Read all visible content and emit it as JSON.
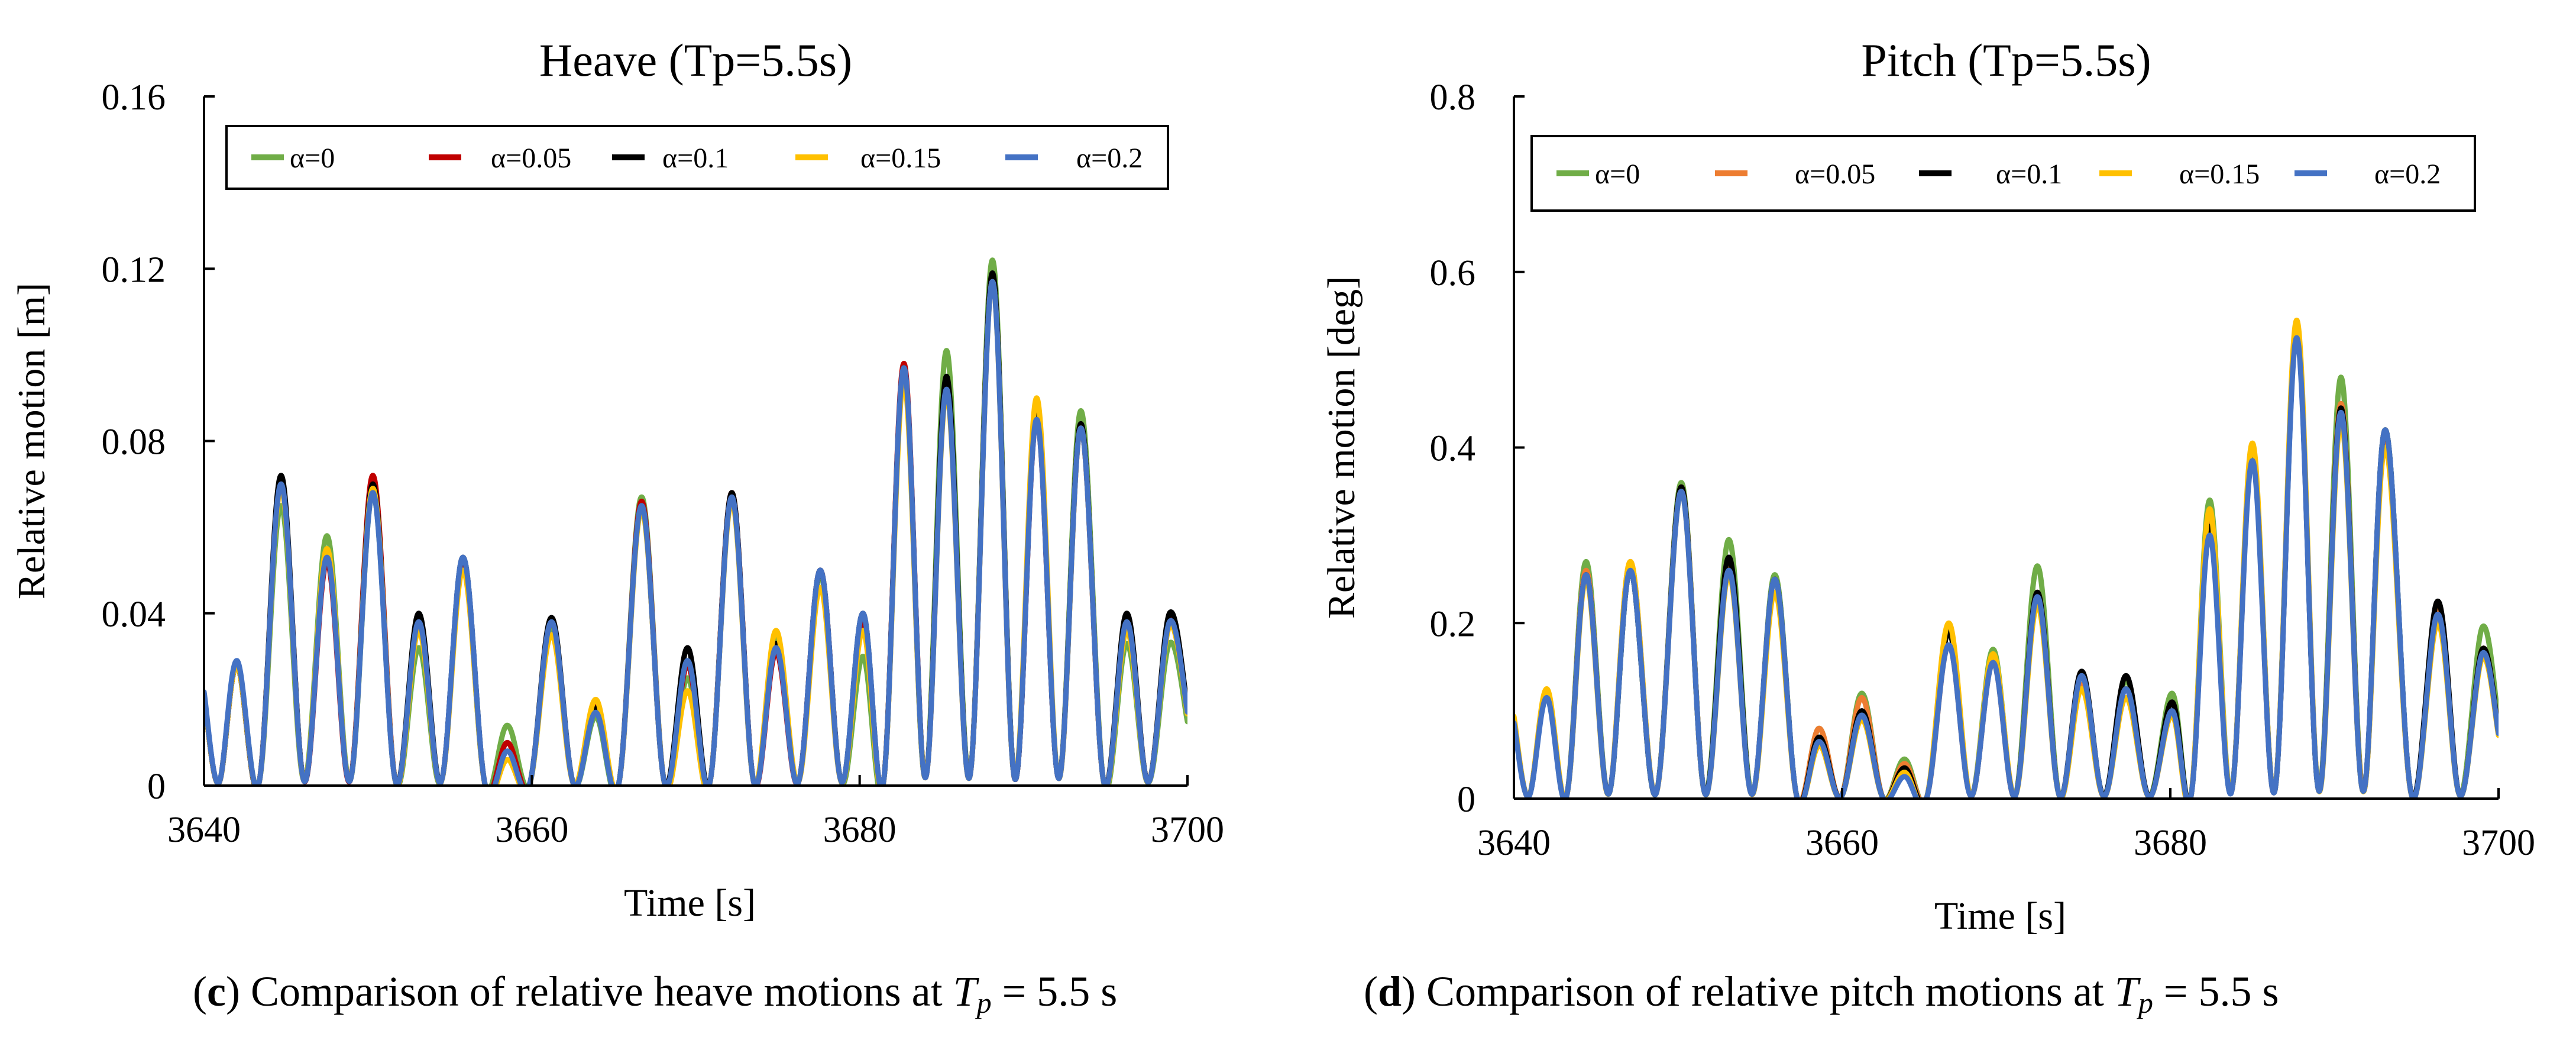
{
  "chart_data": [
    {
      "type": "line",
      "title": "Heave (Tp=5.5s)",
      "xlabel": "Time  [s]",
      "ylabel": "Relative motion [m]",
      "xlim": [
        3640,
        3700
      ],
      "ylim": [
        0,
        0.16
      ],
      "x_ticks": [
        3640,
        3660,
        3680,
        3700
      ],
      "y_ticks": [
        "0",
        "0.04",
        "0.08",
        "0.12",
        "0.16"
      ],
      "grid": false,
      "legend": "top, inside, horizontal",
      "series": [
        {
          "name": "α=0",
          "color": "#70ad47",
          "peaks": [
            [
              3642.0,
              0.028
            ],
            [
              3644.7,
              0.065
            ],
            [
              3647.5,
              0.058
            ],
            [
              3650.3,
              0.068
            ],
            [
              3653.1,
              0.032
            ],
            [
              3655.8,
              0.051
            ],
            [
              3658.5,
              0.014
            ],
            [
              3661.2,
              0.037
            ],
            [
              3663.9,
              0.016
            ],
            [
              3666.7,
              0.067
            ],
            [
              3669.5,
              0.025
            ],
            [
              3672.2,
              0.067
            ],
            [
              3674.9,
              0.034
            ],
            [
              3677.6,
              0.049
            ],
            [
              3680.2,
              0.03
            ],
            [
              3682.7,
              0.096
            ],
            [
              3685.3,
              0.101
            ],
            [
              3688.1,
              0.122
            ],
            [
              3690.8,
              0.087
            ],
            [
              3693.5,
              0.087
            ],
            [
              3696.3,
              0.033
            ],
            [
              3698.9,
              0.033
            ]
          ]
        },
        {
          "name": "α=0.05",
          "color": "#c00000",
          "peaks": [
            [
              3642.0,
              0.028
            ],
            [
              3644.7,
              0.071
            ],
            [
              3647.5,
              0.052
            ],
            [
              3650.3,
              0.072
            ],
            [
              3653.1,
              0.037
            ],
            [
              3655.8,
              0.052
            ],
            [
              3658.5,
              0.01
            ],
            [
              3661.2,
              0.038
            ],
            [
              3663.9,
              0.019
            ],
            [
              3666.7,
              0.066
            ],
            [
              3669.5,
              0.028
            ],
            [
              3672.2,
              0.068
            ],
            [
              3674.9,
              0.031
            ],
            [
              3677.6,
              0.05
            ],
            [
              3680.2,
              0.038
            ],
            [
              3682.7,
              0.098
            ],
            [
              3685.3,
              0.093
            ],
            [
              3688.1,
              0.118
            ],
            [
              3690.8,
              0.085
            ],
            [
              3693.5,
              0.083
            ],
            [
              3696.3,
              0.039
            ],
            [
              3698.9,
              0.039
            ]
          ]
        },
        {
          "name": "α=0.1",
          "color": "#000000",
          "peaks": [
            [
              3642.0,
              0.028
            ],
            [
              3644.7,
              0.072
            ],
            [
              3647.5,
              0.054
            ],
            [
              3650.3,
              0.07
            ],
            [
              3653.1,
              0.04
            ],
            [
              3655.8,
              0.053
            ],
            [
              3658.5,
              0.008
            ],
            [
              3661.2,
              0.039
            ],
            [
              3663.9,
              0.018
            ],
            [
              3666.7,
              0.065
            ],
            [
              3669.5,
              0.032
            ],
            [
              3672.2,
              0.068
            ],
            [
              3674.9,
              0.033
            ],
            [
              3677.6,
              0.05
            ],
            [
              3680.2,
              0.04
            ],
            [
              3682.7,
              0.097
            ],
            [
              3685.3,
              0.095
            ],
            [
              3688.1,
              0.119
            ],
            [
              3690.8,
              0.086
            ],
            [
              3693.5,
              0.084
            ],
            [
              3696.3,
              0.04
            ],
            [
              3698.9,
              0.04
            ]
          ]
        },
        {
          "name": "α=0.15",
          "color": "#ffc000",
          "peaks": [
            [
              3642.0,
              0.028
            ],
            [
              3644.7,
              0.069
            ],
            [
              3647.5,
              0.055
            ],
            [
              3650.3,
              0.069
            ],
            [
              3653.1,
              0.036
            ],
            [
              3655.8,
              0.05
            ],
            [
              3658.5,
              0.006
            ],
            [
              3661.2,
              0.035
            ],
            [
              3663.9,
              0.02
            ],
            [
              3666.7,
              0.064
            ],
            [
              3669.5,
              0.022
            ],
            [
              3672.2,
              0.066
            ],
            [
              3674.9,
              0.036
            ],
            [
              3677.6,
              0.046
            ],
            [
              3680.2,
              0.036
            ],
            [
              3682.7,
              0.094
            ],
            [
              3685.3,
              0.091
            ],
            [
              3688.1,
              0.117
            ],
            [
              3690.8,
              0.09
            ],
            [
              3693.5,
              0.083
            ],
            [
              3696.3,
              0.036
            ],
            [
              3698.9,
              0.037
            ]
          ]
        },
        {
          "name": "α=0.2",
          "color": "#4472c4",
          "peaks": [
            [
              3642.0,
              0.029
            ],
            [
              3644.7,
              0.07
            ],
            [
              3647.5,
              0.053
            ],
            [
              3650.3,
              0.068
            ],
            [
              3653.1,
              0.038
            ],
            [
              3655.8,
              0.053
            ],
            [
              3658.5,
              0.008
            ],
            [
              3661.2,
              0.038
            ],
            [
              3663.9,
              0.017
            ],
            [
              3666.7,
              0.065
            ],
            [
              3669.5,
              0.029
            ],
            [
              3672.2,
              0.067
            ],
            [
              3674.9,
              0.032
            ],
            [
              3677.6,
              0.05
            ],
            [
              3680.2,
              0.04
            ],
            [
              3682.7,
              0.097
            ],
            [
              3685.3,
              0.092
            ],
            [
              3688.1,
              0.117
            ],
            [
              3690.8,
              0.085
            ],
            [
              3693.5,
              0.083
            ],
            [
              3696.3,
              0.038
            ],
            [
              3698.9,
              0.038
            ]
          ]
        }
      ]
    },
    {
      "type": "line",
      "title": "Pitch (Tp=5.5s)",
      "xlabel": "Time  [s]",
      "ylabel": "Relative motion [deg]",
      "xlim": [
        3640,
        3700
      ],
      "ylim": [
        0,
        0.8
      ],
      "x_ticks": [
        3640,
        3660,
        3680,
        3700
      ],
      "y_ticks": [
        "0",
        "0.2",
        "0.4",
        "0.6",
        "0.8"
      ],
      "grid": false,
      "legend": "top, inside, horizontal",
      "series": [
        {
          "name": "α=0",
          "color": "#70ad47",
          "peaks": [
            [
              3642.0,
              0.12
            ],
            [
              3644.4,
              0.27
            ],
            [
              3647.1,
              0.26
            ],
            [
              3650.2,
              0.36
            ],
            [
              3653.1,
              0.295
            ],
            [
              3655.9,
              0.255
            ],
            [
              3658.6,
              0.08
            ],
            [
              3661.2,
              0.12
            ],
            [
              3663.8,
              0.045
            ],
            [
              3666.5,
              0.19
            ],
            [
              3669.2,
              0.17
            ],
            [
              3671.9,
              0.265
            ],
            [
              3674.6,
              0.14
            ],
            [
              3677.3,
              0.135
            ],
            [
              3680.1,
              0.12
            ],
            [
              3682.4,
              0.34
            ],
            [
              3685.0,
              0.4
            ],
            [
              3687.7,
              0.54
            ],
            [
              3690.4,
              0.48
            ],
            [
              3693.1,
              0.42
            ],
            [
              3696.3,
              0.215
            ],
            [
              3699.0,
              0.195
            ]
          ]
        },
        {
          "name": "α=0.05",
          "color": "#ed7d31",
          "peaks": [
            [
              3642.0,
              0.12
            ],
            [
              3644.4,
              0.26
            ],
            [
              3647.1,
              0.27
            ],
            [
              3650.2,
              0.355
            ],
            [
              3653.1,
              0.265
            ],
            [
              3655.9,
              0.25
            ],
            [
              3658.6,
              0.08
            ],
            [
              3661.2,
              0.115
            ],
            [
              3663.8,
              0.04
            ],
            [
              3666.5,
              0.175
            ],
            [
              3669.2,
              0.155
            ],
            [
              3671.9,
              0.235
            ],
            [
              3674.6,
              0.13
            ],
            [
              3677.3,
              0.125
            ],
            [
              3680.1,
              0.1
            ],
            [
              3682.4,
              0.32
            ],
            [
              3685.0,
              0.39
            ],
            [
              3687.7,
              0.535
            ],
            [
              3690.4,
              0.45
            ],
            [
              3693.1,
              0.41
            ],
            [
              3696.3,
              0.215
            ],
            [
              3699.0,
              0.17
            ]
          ]
        },
        {
          "name": "α=0.1",
          "color": "#000000",
          "peaks": [
            [
              3642.0,
              0.12
            ],
            [
              3644.4,
              0.255
            ],
            [
              3647.1,
              0.26
            ],
            [
              3650.2,
              0.355
            ],
            [
              3653.1,
              0.275
            ],
            [
              3655.9,
              0.25
            ],
            [
              3658.6,
              0.07
            ],
            [
              3661.2,
              0.1
            ],
            [
              3663.8,
              0.035
            ],
            [
              3666.5,
              0.19
            ],
            [
              3669.2,
              0.16
            ],
            [
              3671.9,
              0.235
            ],
            [
              3674.6,
              0.145
            ],
            [
              3677.3,
              0.14
            ],
            [
              3680.1,
              0.11
            ],
            [
              3682.4,
              0.31
            ],
            [
              3685.0,
              0.395
            ],
            [
              3687.7,
              0.53
            ],
            [
              3690.4,
              0.445
            ],
            [
              3693.1,
              0.42
            ],
            [
              3696.3,
              0.225
            ],
            [
              3699.0,
              0.17
            ]
          ]
        },
        {
          "name": "α=0.15",
          "color": "#ffc000",
          "peaks": [
            [
              3642.0,
              0.125
            ],
            [
              3644.4,
              0.25
            ],
            [
              3647.1,
              0.27
            ],
            [
              3650.2,
              0.35
            ],
            [
              3653.1,
              0.255
            ],
            [
              3655.9,
              0.235
            ],
            [
              3658.6,
              0.06
            ],
            [
              3661.2,
              0.09
            ],
            [
              3663.8,
              0.03
            ],
            [
              3666.5,
              0.2
            ],
            [
              3669.2,
              0.165
            ],
            [
              3671.9,
              0.22
            ],
            [
              3674.6,
              0.125
            ],
            [
              3677.3,
              0.115
            ],
            [
              3680.1,
              0.095
            ],
            [
              3682.4,
              0.33
            ],
            [
              3685.0,
              0.405
            ],
            [
              3687.7,
              0.545
            ],
            [
              3690.4,
              0.43
            ],
            [
              3693.1,
              0.4
            ],
            [
              3696.3,
              0.2
            ],
            [
              3699.0,
              0.16
            ]
          ]
        },
        {
          "name": "α=0.2",
          "color": "#4472c4",
          "peaks": [
            [
              3642.0,
              0.115
            ],
            [
              3644.4,
              0.255
            ],
            [
              3647.1,
              0.26
            ],
            [
              3650.2,
              0.35
            ],
            [
              3653.1,
              0.26
            ],
            [
              3655.9,
              0.25
            ],
            [
              3658.6,
              0.065
            ],
            [
              3661.2,
              0.095
            ],
            [
              3663.8,
              0.025
            ],
            [
              3666.5,
              0.175
            ],
            [
              3669.2,
              0.155
            ],
            [
              3671.9,
              0.23
            ],
            [
              3674.6,
              0.14
            ],
            [
              3677.3,
              0.125
            ],
            [
              3680.1,
              0.1
            ],
            [
              3682.4,
              0.3
            ],
            [
              3685.0,
              0.385
            ],
            [
              3687.7,
              0.525
            ],
            [
              3690.4,
              0.44
            ],
            [
              3693.1,
              0.42
            ],
            [
              3696.3,
              0.21
            ],
            [
              3699.0,
              0.165
            ]
          ]
        }
      ]
    }
  ],
  "captions": [
    {
      "letter": "c",
      "text": "Comparison of relative heave motions at ",
      "symbol": "T",
      "subscript": "p",
      "value": "= 5.5 s"
    },
    {
      "letter": "d",
      "text": "Comparison of relative pitch motions at ",
      "symbol": "T",
      "subscript": "p",
      "value": "= 5.5 s"
    }
  ]
}
